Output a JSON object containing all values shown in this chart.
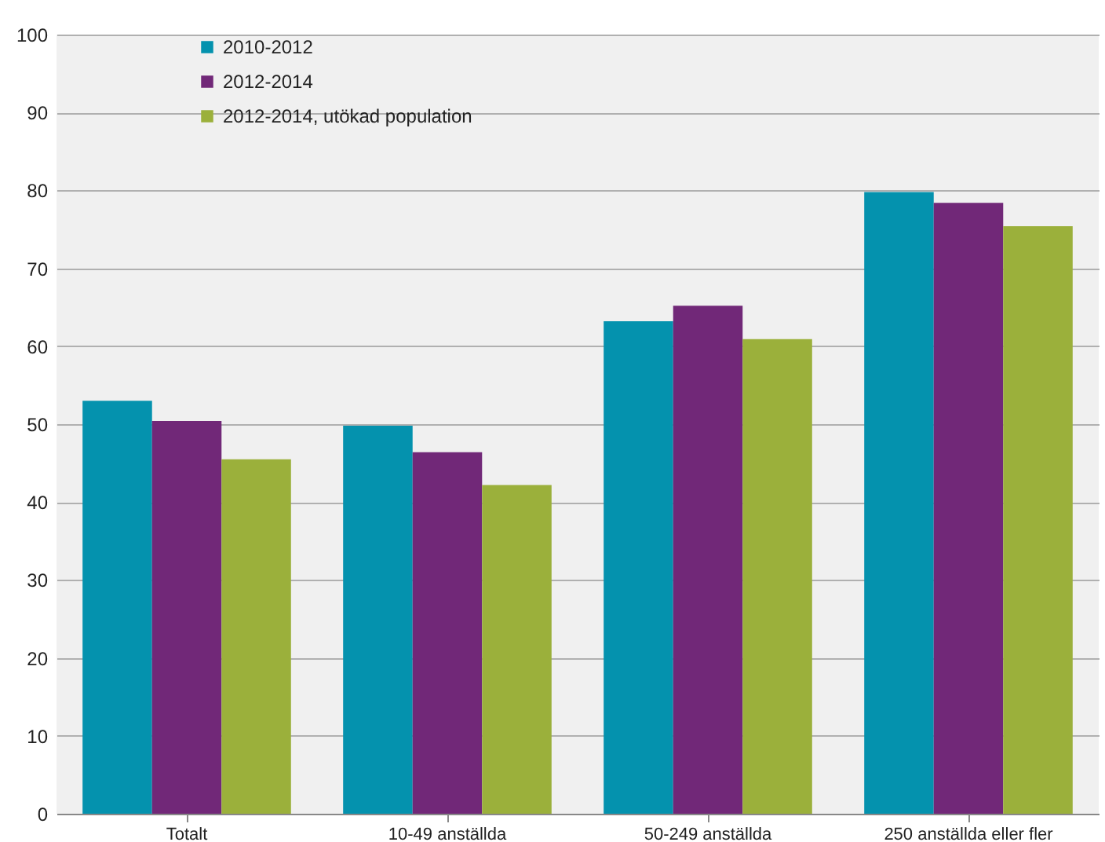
{
  "chart_data": {
    "type": "bar",
    "categories": [
      "Totalt",
      "10-49 anställda",
      "50-249 anställda",
      "250 anställda eller fler"
    ],
    "series": [
      {
        "name": "2010-2012",
        "color": "#0492ae",
        "values": [
          53,
          49.8,
          63.2,
          79.8
        ]
      },
      {
        "name": "2012-2014",
        "color": "#712878",
        "values": [
          50.4,
          46.4,
          65.2,
          78.4
        ]
      },
      {
        "name": "2012-2014, utökad population",
        "color": "#9bb03b",
        "values": [
          45.5,
          42.2,
          60.9,
          75.4
        ]
      }
    ],
    "ylim": [
      0,
      100
    ],
    "yticks": [
      0,
      10,
      20,
      30,
      40,
      50,
      60,
      70,
      80,
      90,
      100
    ],
    "grid": "y",
    "legend": "top left"
  }
}
